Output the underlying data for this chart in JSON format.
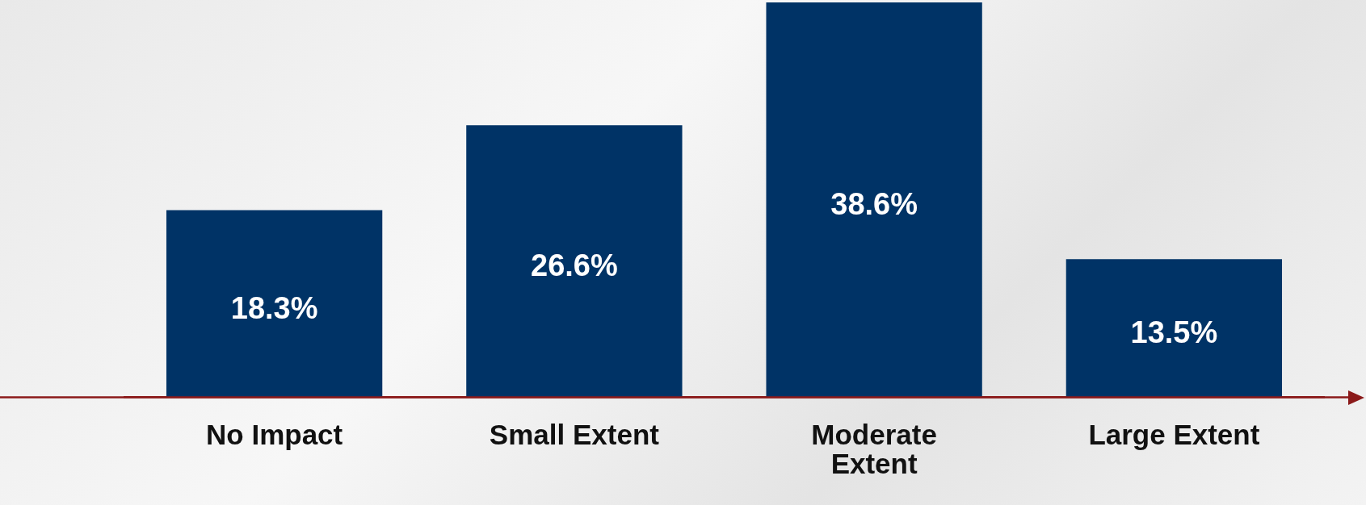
{
  "chart_data": {
    "type": "bar",
    "categories": [
      "No Impact",
      "Small Extent",
      "Moderate Extent",
      "Large Extent"
    ],
    "values": [
      18.3,
      26.6,
      38.6,
      13.5
    ],
    "value_labels": [
      "18.3%",
      "26.6%",
      "38.6%",
      "13.5%"
    ],
    "color": "#003366",
    "grid": false,
    "legend": false
  }
}
